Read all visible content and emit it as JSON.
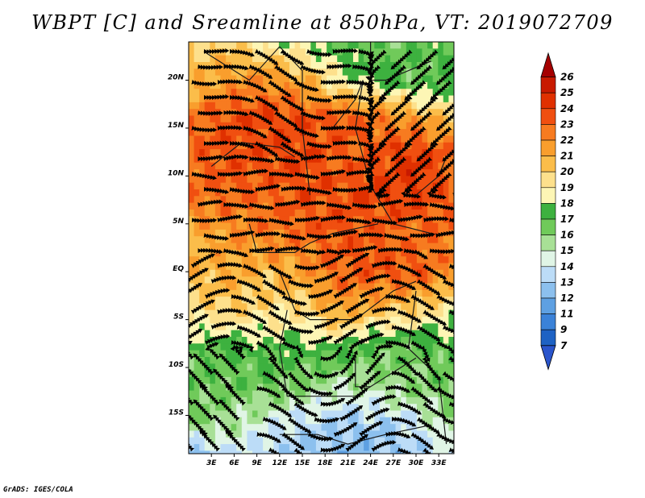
{
  "page": {
    "title": "WBPT [C] and Sreamline at 850hPa, VT: 2019072709",
    "credit": "GrADS: IGES/COLA"
  },
  "chart_data": {
    "type": "heatmap",
    "title": "WBPT [C] and Sreamline at 850hPa, VT: 2019072709",
    "variable": "WBPT [C]",
    "level": "850hPa",
    "valid_time": "2019072709",
    "overlay": "streamlines",
    "x_ticks": [
      "3E",
      "6E",
      "9E",
      "12E",
      "15E",
      "18E",
      "21E",
      "24E",
      "27E",
      "30E",
      "33E"
    ],
    "x_tick_values": [
      3,
      6,
      9,
      12,
      15,
      18,
      21,
      24,
      27,
      30,
      33
    ],
    "y_ticks": [
      "20N",
      "15N",
      "10N",
      "5N",
      "EQ",
      "5S",
      "10S",
      "15S"
    ],
    "y_tick_values": [
      20,
      15,
      10,
      5,
      0,
      -5,
      -10,
      -15
    ],
    "xlim": [
      0,
      35
    ],
    "ylim": [
      -19,
      24
    ],
    "colorbar": {
      "levels": [
        "26",
        "25",
        "24",
        "23",
        "22",
        "21",
        "20",
        "19",
        "18",
        "17",
        "16",
        "15",
        "14",
        "13",
        "12",
        "11",
        "9",
        "7"
      ],
      "colors": [
        "#a50000",
        "#c81a00",
        "#e03000",
        "#f04f10",
        "#f77b20",
        "#f99e2d",
        "#fbbd4a",
        "#fde08c",
        "#fdf6b5",
        "#3db13f",
        "#70ca5a",
        "#a8e096",
        "#e0f5e6",
        "#bcdcf7",
        "#8cc0ee",
        "#5ea0e2",
        "#3b82d8",
        "#1e62c4",
        "#2a55cc"
      ]
    },
    "field_grid": {
      "lon": [
        0,
        5,
        10,
        15,
        20,
        25,
        30,
        35
      ],
      "lat": [
        24,
        20,
        16,
        12,
        8,
        4,
        0,
        -4,
        -8,
        -12,
        -16,
        -19
      ],
      "values": [
        [
          19.5,
          20,
          18.5,
          18,
          17,
          16.5,
          17,
          17.5
        ],
        [
          20.5,
          21.5,
          22,
          21,
          18.5,
          17.5,
          16.5,
          17
        ],
        [
          22.5,
          23.5,
          24,
          23.5,
          23.5,
          22.5,
          21.5,
          20
        ],
        [
          23,
          23.5,
          23.5,
          24,
          23,
          23.5,
          24.5,
          23
        ],
        [
          22.5,
          23,
          23,
          23.5,
          23.5,
          24,
          24,
          23
        ],
        [
          21,
          21.5,
          22.5,
          23,
          23.5,
          23,
          22.5,
          23
        ],
        [
          20.5,
          21,
          20.5,
          21.5,
          23,
          23.5,
          23.5,
          21.5
        ],
        [
          19.5,
          20,
          19.5,
          19.5,
          21.5,
          20.5,
          20,
          18.5
        ],
        [
          17,
          17,
          17.5,
          17.5,
          17.5,
          16.5,
          16.5,
          17
        ],
        [
          16.5,
          16.5,
          16.5,
          16,
          15,
          15.5,
          16,
          16.5
        ],
        [
          16,
          15.5,
          14.5,
          13.5,
          13,
          13,
          14,
          15.5
        ],
        [
          12,
          14,
          13.5,
          13,
          12.5,
          12.5,
          13,
          14.5
        ]
      ]
    },
    "streamline_flow": [
      {
        "lon": 2,
        "lat": 20,
        "u": 1.0,
        "v": -0.1
      },
      {
        "lon": 10,
        "lat": 17,
        "u": 1.0,
        "v": -0.2
      },
      {
        "lon": 25,
        "lat": 14,
        "u": -0.6,
        "v": -0.6
      },
      {
        "lon": 5,
        "lat": 8,
        "u": 1.0,
        "v": 0.0
      },
      {
        "lon": 20,
        "lat": 5,
        "u": 1.0,
        "v": 0.1
      },
      {
        "lon": 5,
        "lat": 0,
        "u": 0.8,
        "v": 0.5
      },
      {
        "lon": 20,
        "lat": -3,
        "u": 1.0,
        "v": 0.3
      },
      {
        "lon": 30,
        "lat": -8,
        "u": -0.5,
        "v": 1.0
      },
      {
        "lon": 10,
        "lat": -12,
        "u": -0.7,
        "v": 0.7
      },
      {
        "lon": 25,
        "lat": -15,
        "u": 1.0,
        "v": 0.3
      }
    ]
  }
}
